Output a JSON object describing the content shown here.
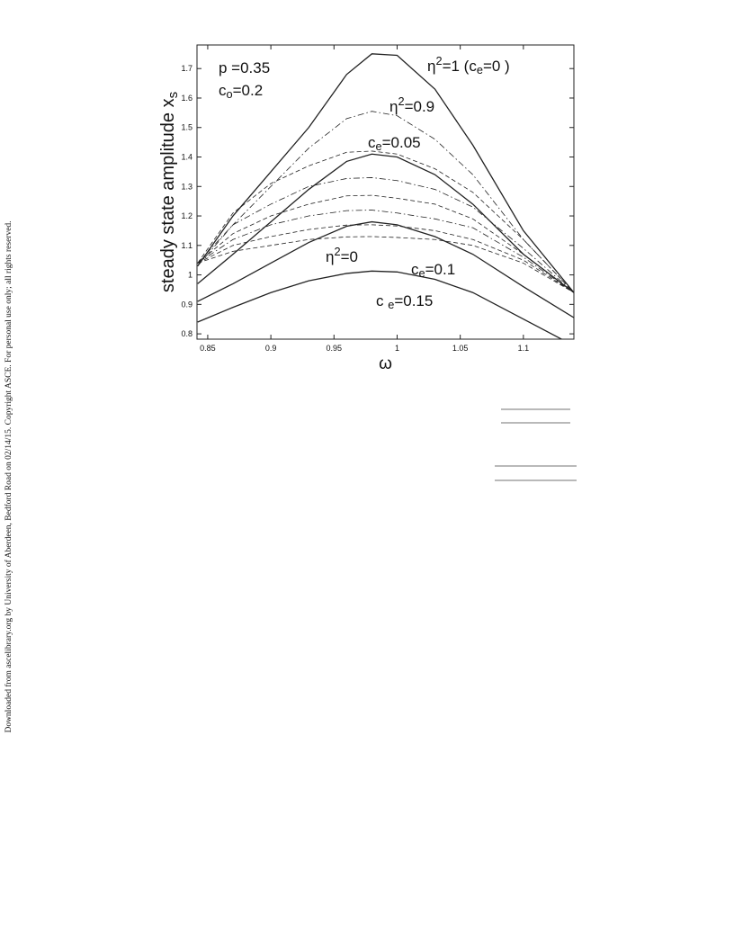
{
  "watermark": "Downloaded from ascelibrary.org by University of Aberdeen, Bedford Road on 02/14/15. Copyright ASCE. For personal use only; all rights reserved.",
  "chart_data": {
    "type": "line",
    "x_label": "ω",
    "y_label": [
      {
        "text": "steady state amplitude x"
      },
      {
        "sub": "s"
      }
    ],
    "xlim": [
      0.8415,
      1.14
    ],
    "ylim": [
      0.782,
      1.78
    ],
    "xticks": [
      0.85,
      0.9,
      0.95,
      1,
      1.05,
      1.1
    ],
    "yticks": [
      0.8,
      0.9,
      1,
      1.1,
      1.2,
      1.3,
      1.4,
      1.5,
      1.6,
      1.7
    ],
    "x": [
      0.842,
      0.87,
      0.9,
      0.93,
      0.96,
      0.98,
      1.0,
      1.03,
      1.06,
      1.1,
      1.14
    ],
    "series": [
      {
        "color": "#222",
        "style": "solid",
        "values": [
          1.03,
          1.2,
          1.35,
          1.5,
          1.68,
          1.75,
          1.745,
          1.63,
          1.44,
          1.15,
          0.94
        ]
      },
      {
        "color": "#222",
        "style": "dashdot",
        "values": [
          1.03,
          1.17,
          1.3,
          1.43,
          1.53,
          1.555,
          1.54,
          1.46,
          1.34,
          1.12,
          0.94
        ]
      },
      {
        "color": "#222",
        "style": "dashed",
        "values": [
          1.04,
          1.21,
          1.31,
          1.37,
          1.416,
          1.42,
          1.41,
          1.36,
          1.28,
          1.12,
          0.94
        ]
      },
      {
        "color": "#222",
        "style": "dashdot",
        "values": [
          1.04,
          1.17,
          1.24,
          1.3,
          1.327,
          1.33,
          1.32,
          1.29,
          1.23,
          1.09,
          0.94
        ]
      },
      {
        "color": "#222",
        "style": "dashed",
        "values": [
          1.04,
          1.14,
          1.2,
          1.24,
          1.268,
          1.27,
          1.26,
          1.24,
          1.19,
          1.07,
          0.94
        ]
      },
      {
        "color": "#222",
        "style": "dashdot",
        "values": [
          1.04,
          1.12,
          1.17,
          1.2,
          1.218,
          1.22,
          1.21,
          1.19,
          1.16,
          1.06,
          0.94
        ]
      },
      {
        "color": "#222",
        "style": "dashed",
        "values": [
          1.04,
          1.1,
          1.13,
          1.154,
          1.169,
          1.17,
          1.166,
          1.15,
          1.12,
          1.05,
          0.94
        ]
      },
      {
        "color": "#222",
        "style": "dashed",
        "values": [
          1.04,
          1.08,
          1.1,
          1.12,
          1.129,
          1.13,
          1.127,
          1.12,
          1.1,
          1.04,
          0.94
        ]
      },
      {
        "color": "#222",
        "style": "solid",
        "values": [
          0.97,
          1.07,
          1.18,
          1.29,
          1.385,
          1.41,
          1.4,
          1.34,
          1.24,
          1.07,
          0.94
        ]
      },
      {
        "color": "#222",
        "style": "solid",
        "values": [
          0.91,
          0.97,
          1.04,
          1.11,
          1.165,
          1.18,
          1.17,
          1.13,
          1.07,
          0.96,
          0.855
        ]
      },
      {
        "color": "#222",
        "style": "solid",
        "values": [
          0.84,
          0.89,
          0.94,
          0.98,
          1.005,
          1.013,
          1.01,
          0.985,
          0.94,
          0.85,
          0.76
        ]
      }
    ],
    "annotations": [
      [
        {
          "text": "p =0.35"
        }
      ],
      [
        {
          "text": "c"
        },
        {
          "sub": "o"
        },
        {
          "text": "=0.2"
        }
      ],
      [
        {
          "text": "η"
        },
        {
          "sup": "2"
        },
        {
          "text": "=1 (c"
        },
        {
          "sub": "e"
        },
        {
          "text": "=0 )"
        }
      ],
      [
        {
          "text": "η"
        },
        {
          "sup": "2"
        },
        {
          "text": "=0.9"
        }
      ],
      [
        {
          "text": "c"
        },
        {
          "sub": "e"
        },
        {
          "text": "=0.05"
        }
      ],
      [
        {
          "text": "η"
        },
        {
          "sup": "2"
        },
        {
          "text": "=0"
        }
      ],
      [
        {
          "text": "c"
        },
        {
          "sub": "e"
        },
        {
          "text": "=0.1"
        }
      ],
      [
        {
          "text": "c "
        },
        {
          "sub": "e"
        },
        {
          "text": "=0.15"
        }
      ]
    ]
  }
}
